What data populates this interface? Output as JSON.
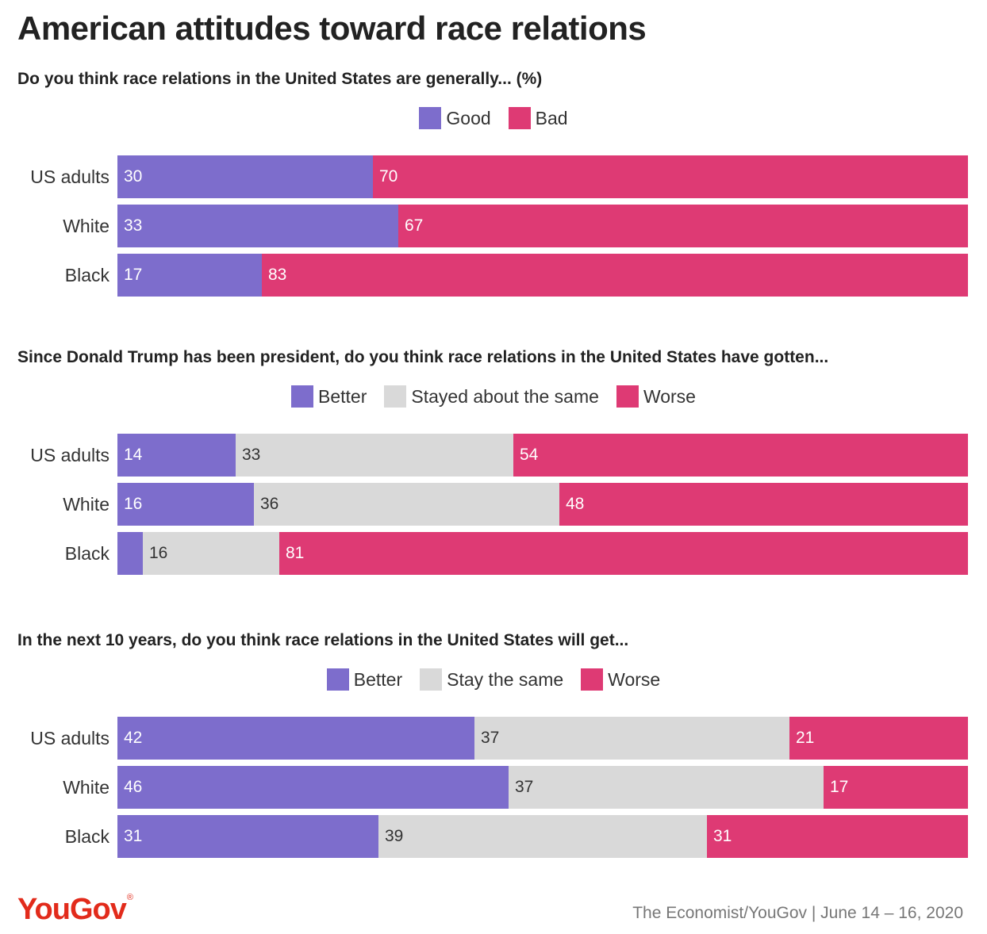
{
  "title": "American attitudes toward race relations",
  "colors": {
    "purple": "#7d6dcc",
    "grey": "#d9d9d9",
    "pink": "#de3a74"
  },
  "chart_data": [
    {
      "type": "bar",
      "orientation": "horizontal-stacked",
      "question": "Do you think race relations in the United States are generally... (%)",
      "categories": [
        "US adults",
        "White",
        "Black"
      ],
      "series": [
        {
          "name": "Good",
          "color": "#7d6dcc",
          "values": [
            30,
            33,
            17
          ]
        },
        {
          "name": "Bad",
          "color": "#de3a74",
          "values": [
            70,
            67,
            83
          ]
        }
      ],
      "value_labels": [
        [
          "30",
          "70"
        ],
        [
          "33",
          "67"
        ],
        [
          "17",
          "83"
        ]
      ],
      "legend": "top-center",
      "xlim": [
        0,
        100
      ]
    },
    {
      "type": "bar",
      "orientation": "horizontal-stacked",
      "question": "Since Donald Trump has been president, do you think race relations in the United States have gotten...",
      "categories": [
        "US adults",
        "White",
        "Black"
      ],
      "series": [
        {
          "name": "Better",
          "color": "#7d6dcc",
          "values": [
            14,
            16,
            3
          ]
        },
        {
          "name": "Stayed about the same",
          "color": "#d9d9d9",
          "values": [
            33,
            36,
            16
          ]
        },
        {
          "name": "Worse",
          "color": "#de3a74",
          "values": [
            54,
            48,
            81
          ]
        }
      ],
      "value_labels": [
        [
          "14",
          "33",
          "54"
        ],
        [
          "16",
          "36",
          "48"
        ],
        [
          "",
          "16",
          "81"
        ]
      ],
      "legend": "top-center",
      "xlim": [
        0,
        100
      ]
    },
    {
      "type": "bar",
      "orientation": "horizontal-stacked",
      "question": "In the next 10 years, do you think race relations in the United States will get...",
      "categories": [
        "US adults",
        "White",
        "Black"
      ],
      "series": [
        {
          "name": "Better",
          "color": "#7d6dcc",
          "values": [
            42,
            46,
            31
          ]
        },
        {
          "name": "Stay the same",
          "color": "#d9d9d9",
          "values": [
            37,
            37,
            39
          ]
        },
        {
          "name": "Worse",
          "color": "#de3a74",
          "values": [
            21,
            17,
            31
          ]
        }
      ],
      "value_labels": [
        [
          "42",
          "37",
          "21"
        ],
        [
          "46",
          "37",
          "17"
        ],
        [
          "31",
          "39",
          "31"
        ]
      ],
      "legend": "top-center",
      "xlim": [
        0,
        100
      ]
    }
  ],
  "footer": {
    "logo": "YouGov",
    "logo_mark": "®",
    "source": "The Economist/YouGov | June 14 – 16, 2020"
  }
}
